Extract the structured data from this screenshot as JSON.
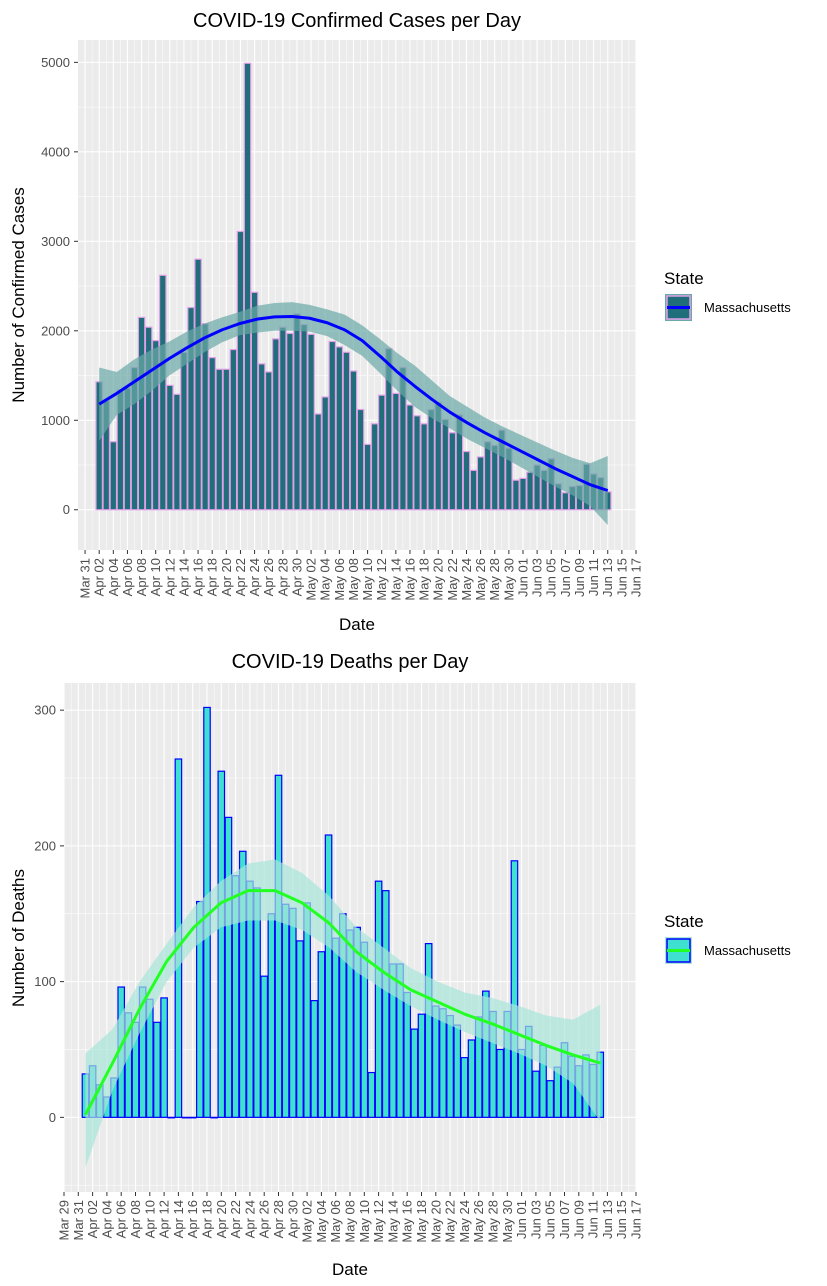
{
  "colors": {
    "panel_bg": "#ebebeb",
    "grid_major": "#ffffff",
    "cases_bar_fill": "#1f6e7a",
    "cases_bar_border": "#e0a0e8",
    "cases_smooth_line": "#0000ff",
    "cases_ribbon": "#6aa9a7",
    "deaths_bar_fill": "#40e0d0",
    "deaths_bar_border": "#0000ff",
    "deaths_smooth_line": "#22ff22",
    "deaths_ribbon": "#a8e6da"
  },
  "chart_data": [
    {
      "type": "bar",
      "title": "COVID-19 Confirmed Cases per Day",
      "xlabel": "Date",
      "ylabel": "Number of Confirmed Cases",
      "ylim": [
        -450,
        5250
      ],
      "yticks": [
        0,
        1000,
        2000,
        3000,
        4000,
        5000
      ],
      "date_start": "2020-04-02",
      "xlim_dates": [
        "2020-03-30",
        "2020-06-17"
      ],
      "x_tick_labels": [
        "Mar 31",
        "Apr 02",
        "Apr 04",
        "Apr 06",
        "Apr 08",
        "Apr 10",
        "Apr 12",
        "Apr 14",
        "Apr 16",
        "Apr 18",
        "Apr 20",
        "Apr 22",
        "Apr 24",
        "Apr 26",
        "Apr 28",
        "Apr 30",
        "May 02",
        "May 04",
        "May 06",
        "May 08",
        "May 10",
        "May 12",
        "May 14",
        "May 16",
        "May 18",
        "May 20",
        "May 22",
        "May 24",
        "May 26",
        "May 28",
        "May 30",
        "Jun 01",
        "Jun 03",
        "Jun 05",
        "Jun 07",
        "Jun 09",
        "Jun 11",
        "Jun 13",
        "Jun 15",
        "Jun 17"
      ],
      "legend": {
        "title": "State",
        "entries": [
          "Massachusetts"
        ],
        "position": "right"
      },
      "grid": true,
      "series": [
        {
          "name": "Massachusetts",
          "values": [
            1430,
            1220,
            760,
            1340,
            1360,
            1590,
            2150,
            2040,
            1890,
            2620,
            1390,
            1290,
            1760,
            2260,
            2800,
            2080,
            1700,
            1570,
            1570,
            1790,
            3110,
            4990,
            2430,
            1630,
            1540,
            1910,
            2040,
            1970,
            2190,
            2070,
            1960,
            1070,
            1260,
            1880,
            1820,
            1760,
            1550,
            1120,
            730,
            960,
            1280,
            1800,
            1300,
            1590,
            1170,
            1050,
            960,
            1120,
            1200,
            1010,
            860,
            1060,
            650,
            440,
            590,
            760,
            720,
            890,
            690,
            330,
            350,
            420,
            500,
            440,
            570,
            290,
            190,
            260,
            270,
            510,
            400,
            360,
            200
          ],
          "smooth": [
            1180,
            1300,
            1430,
            1560,
            1690,
            1810,
            1920,
            2010,
            2080,
            2130,
            2155,
            2160,
            2140,
            2090,
            2010,
            1890,
            1720,
            1540,
            1380,
            1230,
            1090,
            970,
            860,
            760,
            660,
            560,
            460,
            370,
            280,
            215
          ],
          "ribbon_lower": [
            770,
            1060,
            1180,
            1330,
            1500,
            1630,
            1760,
            1870,
            1950,
            1980,
            2000,
            2000,
            1990,
            1940,
            1840,
            1720,
            1530,
            1330,
            1150,
            1020,
            910,
            790,
            690,
            590,
            480,
            370,
            260,
            160,
            40,
            -170
          ],
          "ribbon_upper": [
            1590,
            1540,
            1680,
            1790,
            1880,
            1990,
            2080,
            2150,
            2210,
            2280,
            2310,
            2320,
            2290,
            2240,
            2180,
            2060,
            1910,
            1750,
            1610,
            1440,
            1270,
            1150,
            1030,
            930,
            840,
            750,
            660,
            580,
            520,
            600
          ]
        }
      ]
    },
    {
      "type": "bar",
      "title": "COVID-19 Deaths per Day",
      "xlabel": "Date",
      "ylabel": "Number of Deaths",
      "ylim": [
        -55,
        320
      ],
      "yticks": [
        0,
        100,
        200,
        300
      ],
      "date_start": "2020-04-01",
      "xlim_dates": [
        "2020-03-29",
        "2020-06-17"
      ],
      "x_tick_labels": [
        "Mar 29",
        "Mar 31",
        "Apr 02",
        "Apr 04",
        "Apr 06",
        "Apr 08",
        "Apr 10",
        "Apr 12",
        "Apr 14",
        "Apr 16",
        "Apr 18",
        "Apr 20",
        "Apr 22",
        "Apr 24",
        "Apr 26",
        "Apr 28",
        "Apr 30",
        "May 02",
        "May 04",
        "May 06",
        "May 08",
        "May 10",
        "May 12",
        "May 14",
        "May 16",
        "May 18",
        "May 20",
        "May 22",
        "May 24",
        "May 26",
        "May 28",
        "May 30",
        "Jun 01",
        "Jun 03",
        "Jun 05",
        "Jun 07",
        "Jun 09",
        "Jun 11",
        "Jun 13",
        "Jun 15",
        "Jun 17"
      ],
      "legend": {
        "title": "State",
        "entries": [
          "Massachusetts"
        ],
        "position": "right"
      },
      "grid": true,
      "series": [
        {
          "name": "Massachusetts",
          "values": [
            32,
            38,
            24,
            15,
            29,
            96,
            77,
            70,
            96,
            87,
            70,
            88,
            0,
            264,
            0,
            0,
            159,
            302,
            0,
            255,
            221,
            178,
            196,
            174,
            169,
            104,
            150,
            252,
            157,
            154,
            130,
            158,
            86,
            122,
            208,
            132,
            150,
            138,
            140,
            129,
            33,
            174,
            167,
            113,
            113,
            92,
            65,
            76,
            128,
            82,
            80,
            75,
            68,
            44,
            57,
            74,
            93,
            78,
            50,
            78,
            189,
            50,
            67,
            34,
            53,
            27,
            37,
            55,
            45,
            38,
            46,
            39,
            48
          ],
          "smooth": [
            2,
            40,
            80,
            115,
            140,
            158,
            167,
            167,
            158,
            143,
            122,
            107,
            94,
            85,
            76,
            69,
            61,
            53,
            46,
            40
          ],
          "ribbon_lower": [
            -37,
            20,
            62,
            100,
            125,
            140,
            145,
            145,
            138,
            125,
            107,
            94,
            82,
            72,
            63,
            55,
            47,
            38,
            25,
            -3
          ],
          "ribbon_upper": [
            47,
            65,
            100,
            128,
            155,
            174,
            187,
            190,
            180,
            163,
            140,
            125,
            110,
            100,
            92,
            88,
            82,
            75,
            72,
            83
          ]
        }
      ]
    }
  ]
}
